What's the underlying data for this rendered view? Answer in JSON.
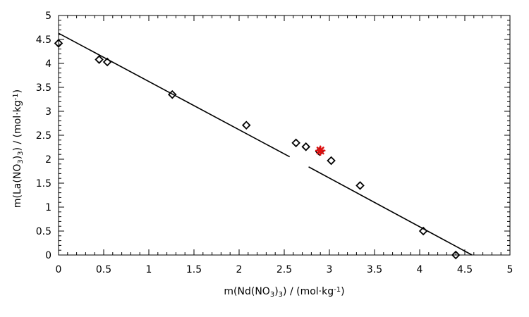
{
  "chart_data": {
    "type": "scatter",
    "title": "",
    "xlabel": {
      "parts": [
        {
          "t": "m(Nd(NO",
          "s": "n"
        },
        {
          "t": "3",
          "s": "sub"
        },
        {
          "t": ")",
          "s": "n"
        },
        {
          "t": "3",
          "s": "sub"
        },
        {
          "t": ") / (mol·kg",
          "s": "n"
        },
        {
          "t": "-1",
          "s": "sup"
        },
        {
          "t": ")",
          "s": "n"
        }
      ]
    },
    "ylabel": {
      "parts": [
        {
          "t": "m(La(NO",
          "s": "n"
        },
        {
          "t": "3",
          "s": "sub"
        },
        {
          "t": ")",
          "s": "n"
        },
        {
          "t": "3",
          "s": "sub"
        },
        {
          "t": ") / (mol·kg",
          "s": "n"
        },
        {
          "t": "-1",
          "s": "sup"
        },
        {
          "t": ")",
          "s": "n"
        }
      ]
    },
    "xlim": [
      0,
      5
    ],
    "ylim": [
      0,
      5
    ],
    "xticks": [
      "0",
      "0.5",
      "1",
      "1.5",
      "2",
      "2.5",
      "3",
      "3.5",
      "4",
      "4.5",
      "5"
    ],
    "yticks": [
      "0",
      "0.5",
      "1",
      "1.5",
      "2",
      "2.5",
      "3",
      "3.5",
      "4",
      "4.5",
      "5"
    ],
    "grid": false,
    "series": [
      {
        "marker": "open-diamond",
        "color": "#000000",
        "points": [
          [
            0.0,
            4.42
          ],
          [
            0.45,
            4.08
          ],
          [
            0.54,
            4.03
          ],
          [
            1.26,
            3.35
          ],
          [
            2.08,
            2.71
          ],
          [
            2.63,
            2.34
          ],
          [
            2.74,
            2.26
          ],
          [
            2.89,
            2.16
          ],
          [
            3.02,
            1.97
          ],
          [
            3.34,
            1.45
          ],
          [
            4.04,
            0.5
          ],
          [
            4.4,
            0.0
          ]
        ]
      },
      {
        "marker": "filled-star",
        "color": "#dd1111",
        "points": [
          [
            2.9,
            2.18
          ]
        ]
      }
    ],
    "fit_line": {
      "color": "#000000",
      "segments": [
        [
          [
            0.0,
            4.63
          ],
          [
            2.56,
            2.05
          ]
        ],
        [
          [
            2.77,
            1.84
          ],
          [
            4.58,
            0.0
          ]
        ]
      ]
    }
  }
}
